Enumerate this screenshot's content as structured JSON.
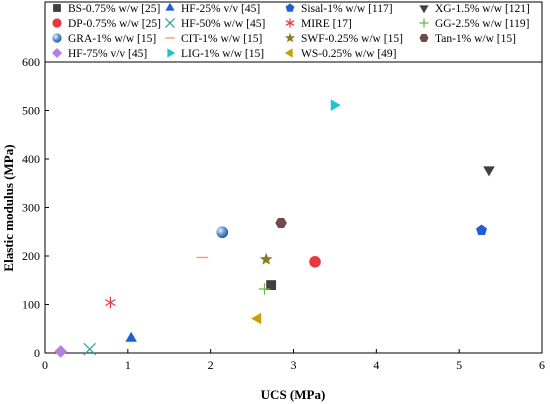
{
  "chart_data": {
    "type": "scatter",
    "title": "",
    "xlabel": "UCS (MPa)",
    "ylabel": "Elastic modulus (MPa)",
    "xlim": [
      0,
      6
    ],
    "ylim": [
      0,
      600
    ],
    "xticks": [
      0,
      1,
      2,
      3,
      4,
      5,
      6
    ],
    "yticks": [
      0,
      100,
      200,
      300,
      400,
      500,
      600
    ],
    "grid": false,
    "legend_position": "top",
    "series": [
      {
        "name": "BS-0.75% w/w [25]",
        "marker": "square",
        "color": "#404040",
        "x": [
          2.73
        ],
        "y": [
          140
        ]
      },
      {
        "name": "HF-25% v/v [45]",
        "marker": "triangle-up",
        "color": "#1f5fd6",
        "x": [
          1.04
        ],
        "y": [
          30
        ]
      },
      {
        "name": "Sisal-1% w/w [117]",
        "marker": "pentagon",
        "color": "#1f5fd6",
        "x": [
          5.27
        ],
        "y": [
          253
        ]
      },
      {
        "name": "XG-1.5% w/w [121]",
        "marker": "triangle-down",
        "color": "#404040",
        "x": [
          5.36
        ],
        "y": [
          378
        ]
      },
      {
        "name": "DP-0.75% w/w [25]",
        "marker": "circle",
        "color": "#e8383d",
        "x": [
          3.26
        ],
        "y": [
          188
        ]
      },
      {
        "name": "HF-50% w/w [45]",
        "marker": "x",
        "color": "#2aa39a",
        "x": [
          0.54
        ],
        "y": [
          8
        ]
      },
      {
        "name": "MIRE [17]",
        "marker": "asterisk",
        "color": "#e8383d",
        "x": [
          0.79
        ],
        "y": [
          104
        ]
      },
      {
        "name": "GG-2.5% w/w [119]",
        "marker": "plus",
        "color": "#6ab04c",
        "x": [
          2.65
        ],
        "y": [
          132
        ]
      },
      {
        "name": "GRA-1% w/w [15]",
        "marker": "sphere",
        "color": "#4f8fd6",
        "x": [
          2.14
        ],
        "y": [
          249
        ]
      },
      {
        "name": "CIT-1% w/w [15]",
        "marker": "dash",
        "color": "#f0a060",
        "x": [
          1.9
        ],
        "y": [
          197
        ]
      },
      {
        "name": "SWF-0.25% w/w [15]",
        "marker": "star",
        "color": "#8a7a1a",
        "x": [
          2.67
        ],
        "y": [
          193
        ]
      },
      {
        "name": "Tan-1% w/w [15]",
        "marker": "hexagon",
        "color": "#6e4a48",
        "x": [
          2.85
        ],
        "y": [
          268
        ]
      },
      {
        "name": "HF-75% v/v [45]",
        "marker": "diamond",
        "color": "#b57ee0",
        "x": [
          0.19
        ],
        "y": [
          3
        ]
      },
      {
        "name": "LIG-1% w/w [15]",
        "marker": "triangle-right",
        "color": "#1fc4cf",
        "x": [
          3.49
        ],
        "y": [
          511
        ]
      },
      {
        "name": "WS-0.25% w/w [49]",
        "marker": "triangle-left",
        "color": "#c9a000",
        "x": [
          2.57
        ],
        "y": [
          71
        ]
      }
    ]
  }
}
